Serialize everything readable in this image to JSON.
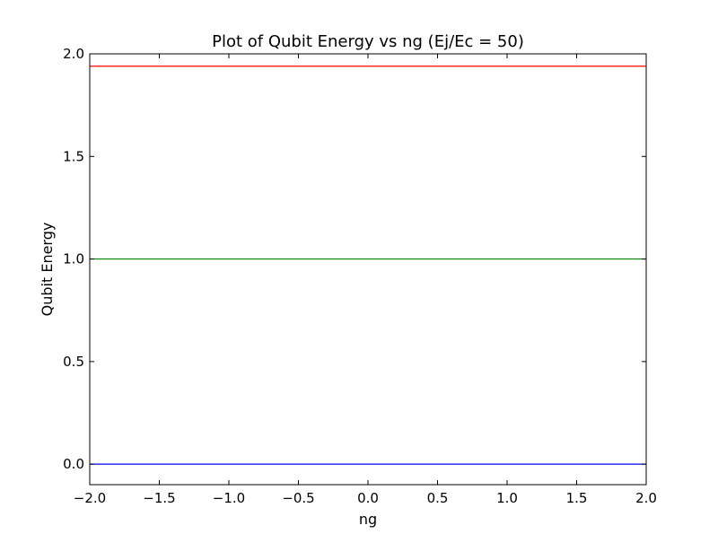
{
  "chart_data": {
    "type": "line",
    "title": "Plot of Qubit Energy vs ng (Ej/Ec = 50)",
    "xlabel": "ng",
    "ylabel": "Qubit Energy",
    "xlim": [
      -2.0,
      2.0
    ],
    "ylim": [
      -0.1,
      2.0
    ],
    "x_ticks": [
      -2.0,
      -1.5,
      -1.0,
      -0.5,
      0.0,
      0.5,
      1.0,
      1.5,
      2.0
    ],
    "x_tick_labels": [
      "−2.0",
      "−1.5",
      "−1.0",
      "−0.5",
      "0.0",
      "0.5",
      "1.0",
      "1.5",
      "2.0"
    ],
    "y_ticks": [
      0.0,
      0.5,
      1.0,
      1.5,
      2.0
    ],
    "y_tick_labels": [
      "0.0",
      "0.5",
      "1.0",
      "1.5",
      "2.0"
    ],
    "grid": false,
    "legend": "none",
    "series": [
      {
        "color": "#0000ff",
        "x": [
          -2.0,
          2.0
        ],
        "y": [
          0.0,
          0.0
        ]
      },
      {
        "color": "#008000",
        "x": [
          -2.0,
          2.0
        ],
        "y": [
          1.0,
          1.0
        ]
      },
      {
        "color": "#ff0000",
        "x": [
          -2.0,
          2.0
        ],
        "y": [
          1.94,
          1.94
        ]
      }
    ]
  }
}
